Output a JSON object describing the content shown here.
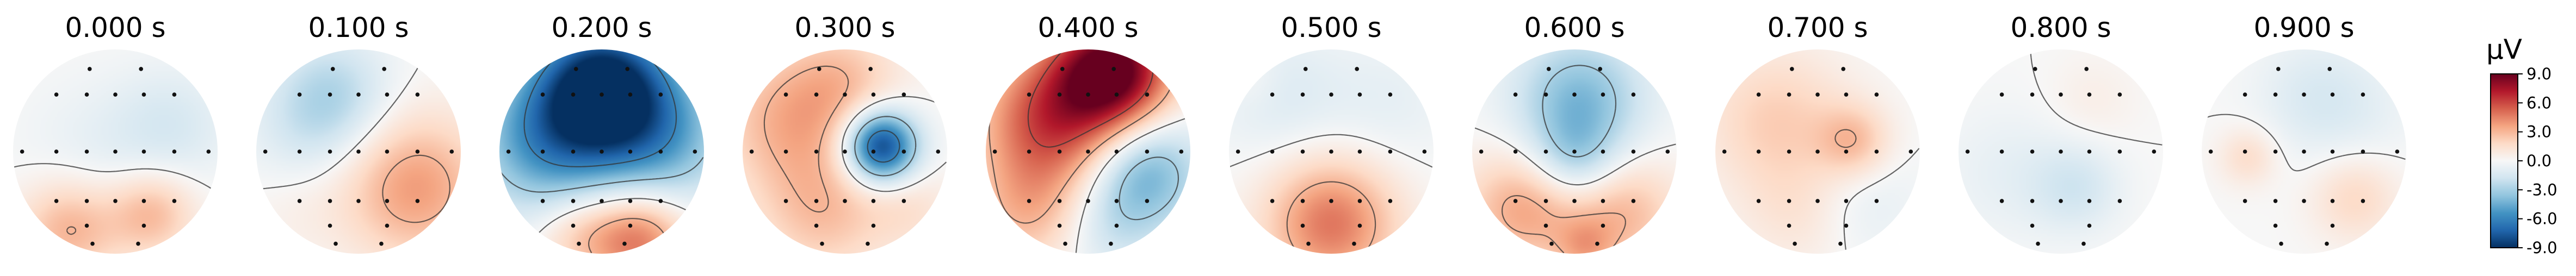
{
  "chart_data": {
    "type": "heatmap",
    "colormap": "RdBu_r",
    "colorbar": {
      "unit_label": "µV",
      "min": -9.0,
      "max": 9.0,
      "ticks": [
        9.0,
        6.0,
        3.0,
        0.0,
        -3.0,
        -6.0,
        -9.0
      ],
      "tick_labels": [
        "9.0",
        "6.0",
        "3.0",
        "0.0",
        "-3.0",
        "-6.0",
        "-9.0"
      ]
    },
    "panels": [
      {
        "title": "0.000 s",
        "time_s": 0.0,
        "sources": [
          {
            "x": -0.45,
            "y": -0.75,
            "v": 3.2,
            "s": 0.35
          },
          {
            "x": 0.35,
            "y": -0.6,
            "v": 3.0,
            "s": 0.3
          },
          {
            "x": 0.55,
            "y": 0.25,
            "v": -1.4,
            "s": 0.4
          },
          {
            "x": -0.2,
            "y": -0.05,
            "v": -0.8,
            "s": 0.5
          }
        ]
      },
      {
        "title": "0.100 s",
        "time_s": 0.1,
        "sources": [
          {
            "x": -0.25,
            "y": 0.55,
            "v": -2.6,
            "s": 0.4
          },
          {
            "x": 0.55,
            "y": -0.35,
            "v": 3.8,
            "s": 0.5
          },
          {
            "x": -0.6,
            "y": -0.55,
            "v": 0.5,
            "s": 0.35
          },
          {
            "x": -0.55,
            "y": 0.15,
            "v": -1.0,
            "s": 0.4
          }
        ]
      },
      {
        "title": "0.200 s",
        "time_s": 0.2,
        "sources": [
          {
            "x": 0.0,
            "y": 0.65,
            "v": -9.0,
            "s": 0.45
          },
          {
            "x": -0.55,
            "y": 0.1,
            "v": -5.0,
            "s": 0.5
          },
          {
            "x": 0.55,
            "y": 0.15,
            "v": -4.5,
            "s": 0.5
          },
          {
            "x": 0.35,
            "y": -0.85,
            "v": 5.0,
            "s": 0.35
          },
          {
            "x": -0.25,
            "y": -0.8,
            "v": 2.0,
            "s": 0.3
          }
        ]
      },
      {
        "title": "0.300 s",
        "time_s": 0.3,
        "sources": [
          {
            "x": 0.35,
            "y": 0.05,
            "v": -9.0,
            "s": 0.25
          },
          {
            "x": -0.55,
            "y": 0.3,
            "v": 3.0,
            "s": 0.5
          },
          {
            "x": 0.0,
            "y": 0.7,
            "v": 2.0,
            "s": 0.4
          },
          {
            "x": -0.2,
            "y": -0.6,
            "v": 2.5,
            "s": 0.45
          },
          {
            "x": 0.65,
            "y": -0.55,
            "v": 1.2,
            "s": 0.3
          }
        ]
      },
      {
        "title": "0.400 s",
        "time_s": 0.4,
        "sources": [
          {
            "x": 0.25,
            "y": 0.8,
            "v": 9.0,
            "s": 0.4
          },
          {
            "x": -0.35,
            "y": 0.3,
            "v": 6.0,
            "s": 0.5
          },
          {
            "x": 0.55,
            "y": -0.2,
            "v": -4.5,
            "s": 0.4
          },
          {
            "x": -0.6,
            "y": -0.6,
            "v": 2.5,
            "s": 0.4
          },
          {
            "x": 0.2,
            "y": -0.75,
            "v": -1.5,
            "s": 0.35
          }
        ]
      },
      {
        "title": "0.500 s",
        "time_s": 0.5,
        "sources": [
          {
            "x": 0.0,
            "y": -0.7,
            "v": 4.8,
            "s": 0.45
          },
          {
            "x": -0.5,
            "y": 0.55,
            "v": -1.2,
            "s": 0.45
          },
          {
            "x": 0.55,
            "y": 0.45,
            "v": -0.8,
            "s": 0.45
          },
          {
            "x": -0.75,
            "y": 0.7,
            "v": 0.6,
            "s": 0.2
          }
        ]
      },
      {
        "title": "0.600 s",
        "time_s": 0.6,
        "sources": [
          {
            "x": 0.05,
            "y": 0.5,
            "v": -4.0,
            "s": 0.45
          },
          {
            "x": -0.5,
            "y": -0.55,
            "v": 3.5,
            "s": 0.4
          },
          {
            "x": 0.45,
            "y": -0.6,
            "v": 3.0,
            "s": 0.4
          },
          {
            "x": 0.0,
            "y": -0.1,
            "v": -2.5,
            "s": 0.3
          },
          {
            "x": 0.1,
            "y": -0.95,
            "v": 2.0,
            "s": 0.2
          }
        ]
      },
      {
        "title": "0.700 s",
        "time_s": 0.7,
        "sources": [
          {
            "x": -0.4,
            "y": 0.3,
            "v": 2.2,
            "s": 0.5
          },
          {
            "x": 0.35,
            "y": 0.1,
            "v": 2.6,
            "s": 0.25
          },
          {
            "x": 0.4,
            "y": -0.5,
            "v": -1.0,
            "s": 0.4
          },
          {
            "x": -0.15,
            "y": -0.6,
            "v": 1.2,
            "s": 0.4
          }
        ]
      },
      {
        "title": "0.800 s",
        "time_s": 0.8,
        "sources": [
          {
            "x": 0.15,
            "y": -0.35,
            "v": -1.6,
            "s": 0.3
          },
          {
            "x": -0.5,
            "y": -0.2,
            "v": -0.8,
            "s": 0.45
          },
          {
            "x": 0.3,
            "y": 0.5,
            "v": 0.6,
            "s": 0.3
          }
        ]
      },
      {
        "title": "0.900 s",
        "time_s": 0.9,
        "sources": [
          {
            "x": -0.55,
            "y": -0.05,
            "v": 1.6,
            "s": 0.2
          },
          {
            "x": 0.5,
            "y": -0.45,
            "v": 1.8,
            "s": 0.3
          },
          {
            "x": 0.1,
            "y": 0.55,
            "v": -1.2,
            "s": 0.4
          },
          {
            "x": 0.55,
            "y": 0.35,
            "v": -0.6,
            "s": 0.4
          }
        ]
      }
    ]
  }
}
